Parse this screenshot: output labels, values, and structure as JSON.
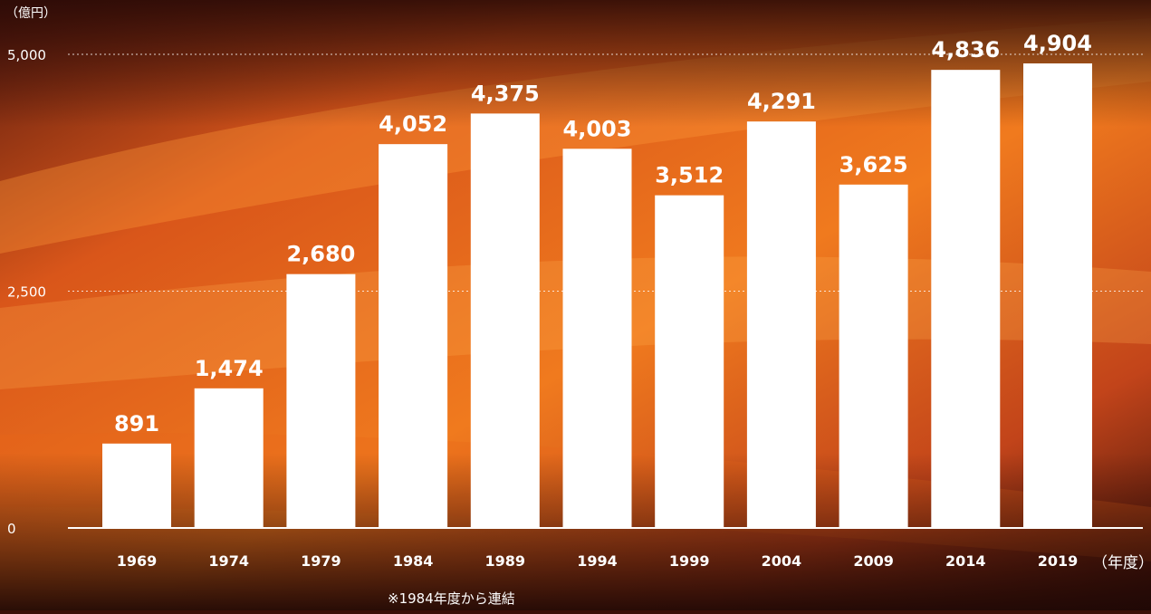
{
  "chart_data": {
    "type": "bar",
    "categories": [
      "1969",
      "1974",
      "1979",
      "1984",
      "1989",
      "1994",
      "1999",
      "2004",
      "2009",
      "2014",
      "2019"
    ],
    "values": [
      891,
      1474,
      2680,
      4052,
      4375,
      4003,
      3512,
      4291,
      3625,
      4836,
      4904
    ],
    "value_labels": [
      "891",
      "1,474",
      "2,680",
      "4,052",
      "4,375",
      "4,003",
      "3,512",
      "4,291",
      "3,625",
      "4,836",
      "4,904"
    ],
    "y_ticks": [
      0,
      2500,
      5000
    ],
    "y_tick_labels": [
      "0",
      "2,500",
      "5,000"
    ],
    "ylim": [
      0,
      5000
    ],
    "grid": true,
    "y_unit_label": "（億円）",
    "x_unit_label": "（年度）",
    "note": "※1984年度から連結",
    "colors": {
      "bar": "#ffffff",
      "text": "#ffffff",
      "grid": "#ffffff"
    }
  }
}
